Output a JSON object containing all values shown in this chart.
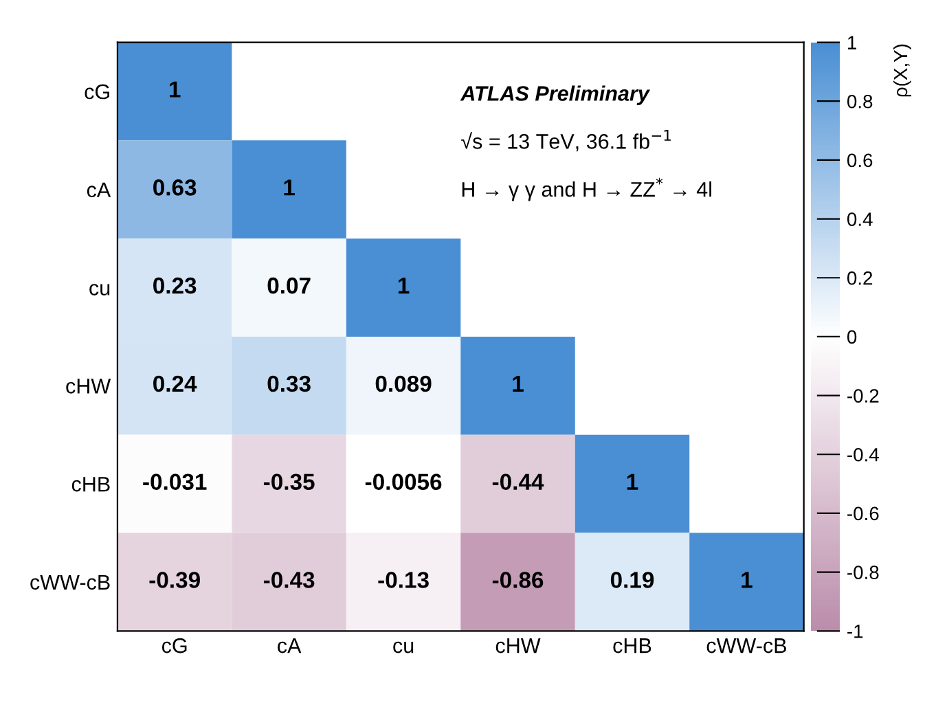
{
  "chart_data": {
    "type": "heatmap",
    "categories": [
      "cG",
      "cA",
      "cu",
      "cHW",
      "cHB",
      "cWW-cB"
    ],
    "y_categories": [
      "cG",
      "cA",
      "cu",
      "cHW",
      "cHB",
      "cWW-cB"
    ],
    "cells": [
      [
        1,
        null,
        null,
        null,
        null,
        null
      ],
      [
        0.63,
        1,
        null,
        null,
        null,
        null
      ],
      [
        0.23,
        0.07,
        1,
        null,
        null,
        null
      ],
      [
        0.24,
        0.33,
        0.089,
        1,
        null,
        null
      ],
      [
        -0.031,
        -0.35,
        -0.0056,
        -0.44,
        1,
        null
      ],
      [
        -0.39,
        -0.43,
        -0.13,
        -0.86,
        0.19,
        1
      ]
    ],
    "data_labels": true,
    "clim": [
      -1,
      1
    ],
    "cticks": [
      -1,
      -0.8,
      -0.6,
      -0.4,
      -0.2,
      0,
      0.2,
      0.4,
      0.6,
      0.8,
      1
    ],
    "clabel": "ρ(X,Y)",
    "annotations": [
      "ATLAS Preliminary",
      "√s = 13 TeV, 36.1 fb$^{−1}$",
      "H → γ γ and H → ZZ$^{*}$ → 4l"
    ]
  }
}
